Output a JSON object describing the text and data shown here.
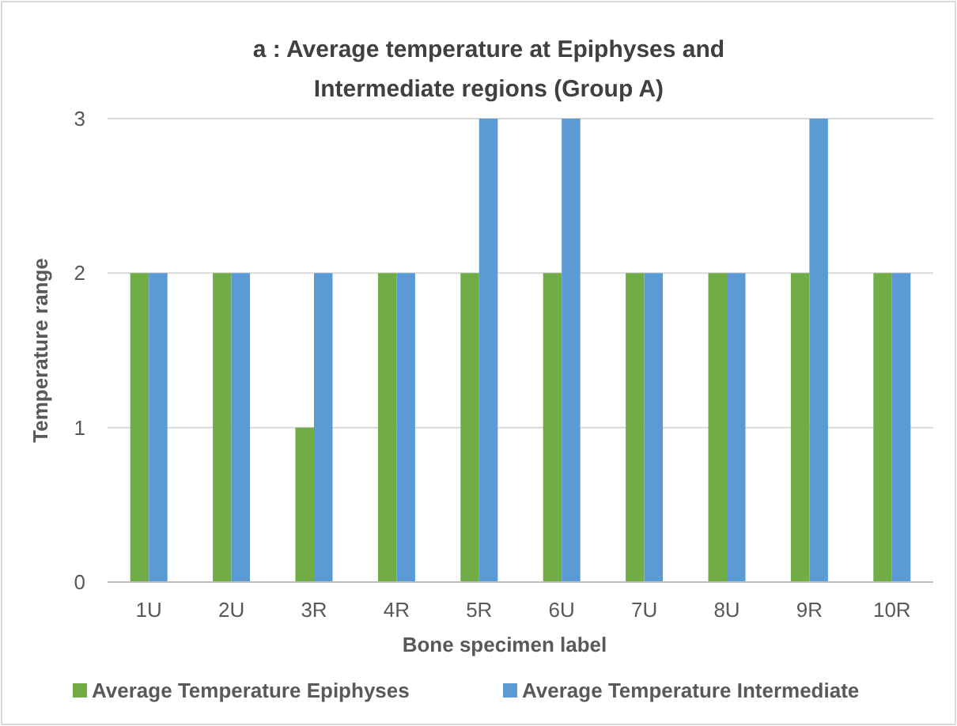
{
  "chart_data": {
    "type": "bar",
    "title": "a : Average temperature at Epiphyses and Intermediate regions (Group A)",
    "xlabel": "Bone specimen label",
    "ylabel": "Temperature range",
    "categories": [
      "1U",
      "2U",
      "3R",
      "4R",
      "5R",
      "6U",
      "7U",
      "8U",
      "9R",
      "10R"
    ],
    "series": [
      {
        "name": "Average Temperature Epiphyses",
        "color": "#70ad47",
        "values": [
          2,
          2,
          1,
          2,
          2,
          2,
          2,
          2,
          2,
          2
        ]
      },
      {
        "name": "Average Temperature Intermediate",
        "color": "#5b9bd5",
        "values": [
          2,
          2,
          2,
          2,
          3,
          3,
          2,
          2,
          3,
          2
        ]
      }
    ],
    "ylim": [
      0,
      3
    ],
    "yticks": [
      0,
      1,
      2,
      3
    ],
    "grid": "y",
    "legend": "bottom"
  }
}
